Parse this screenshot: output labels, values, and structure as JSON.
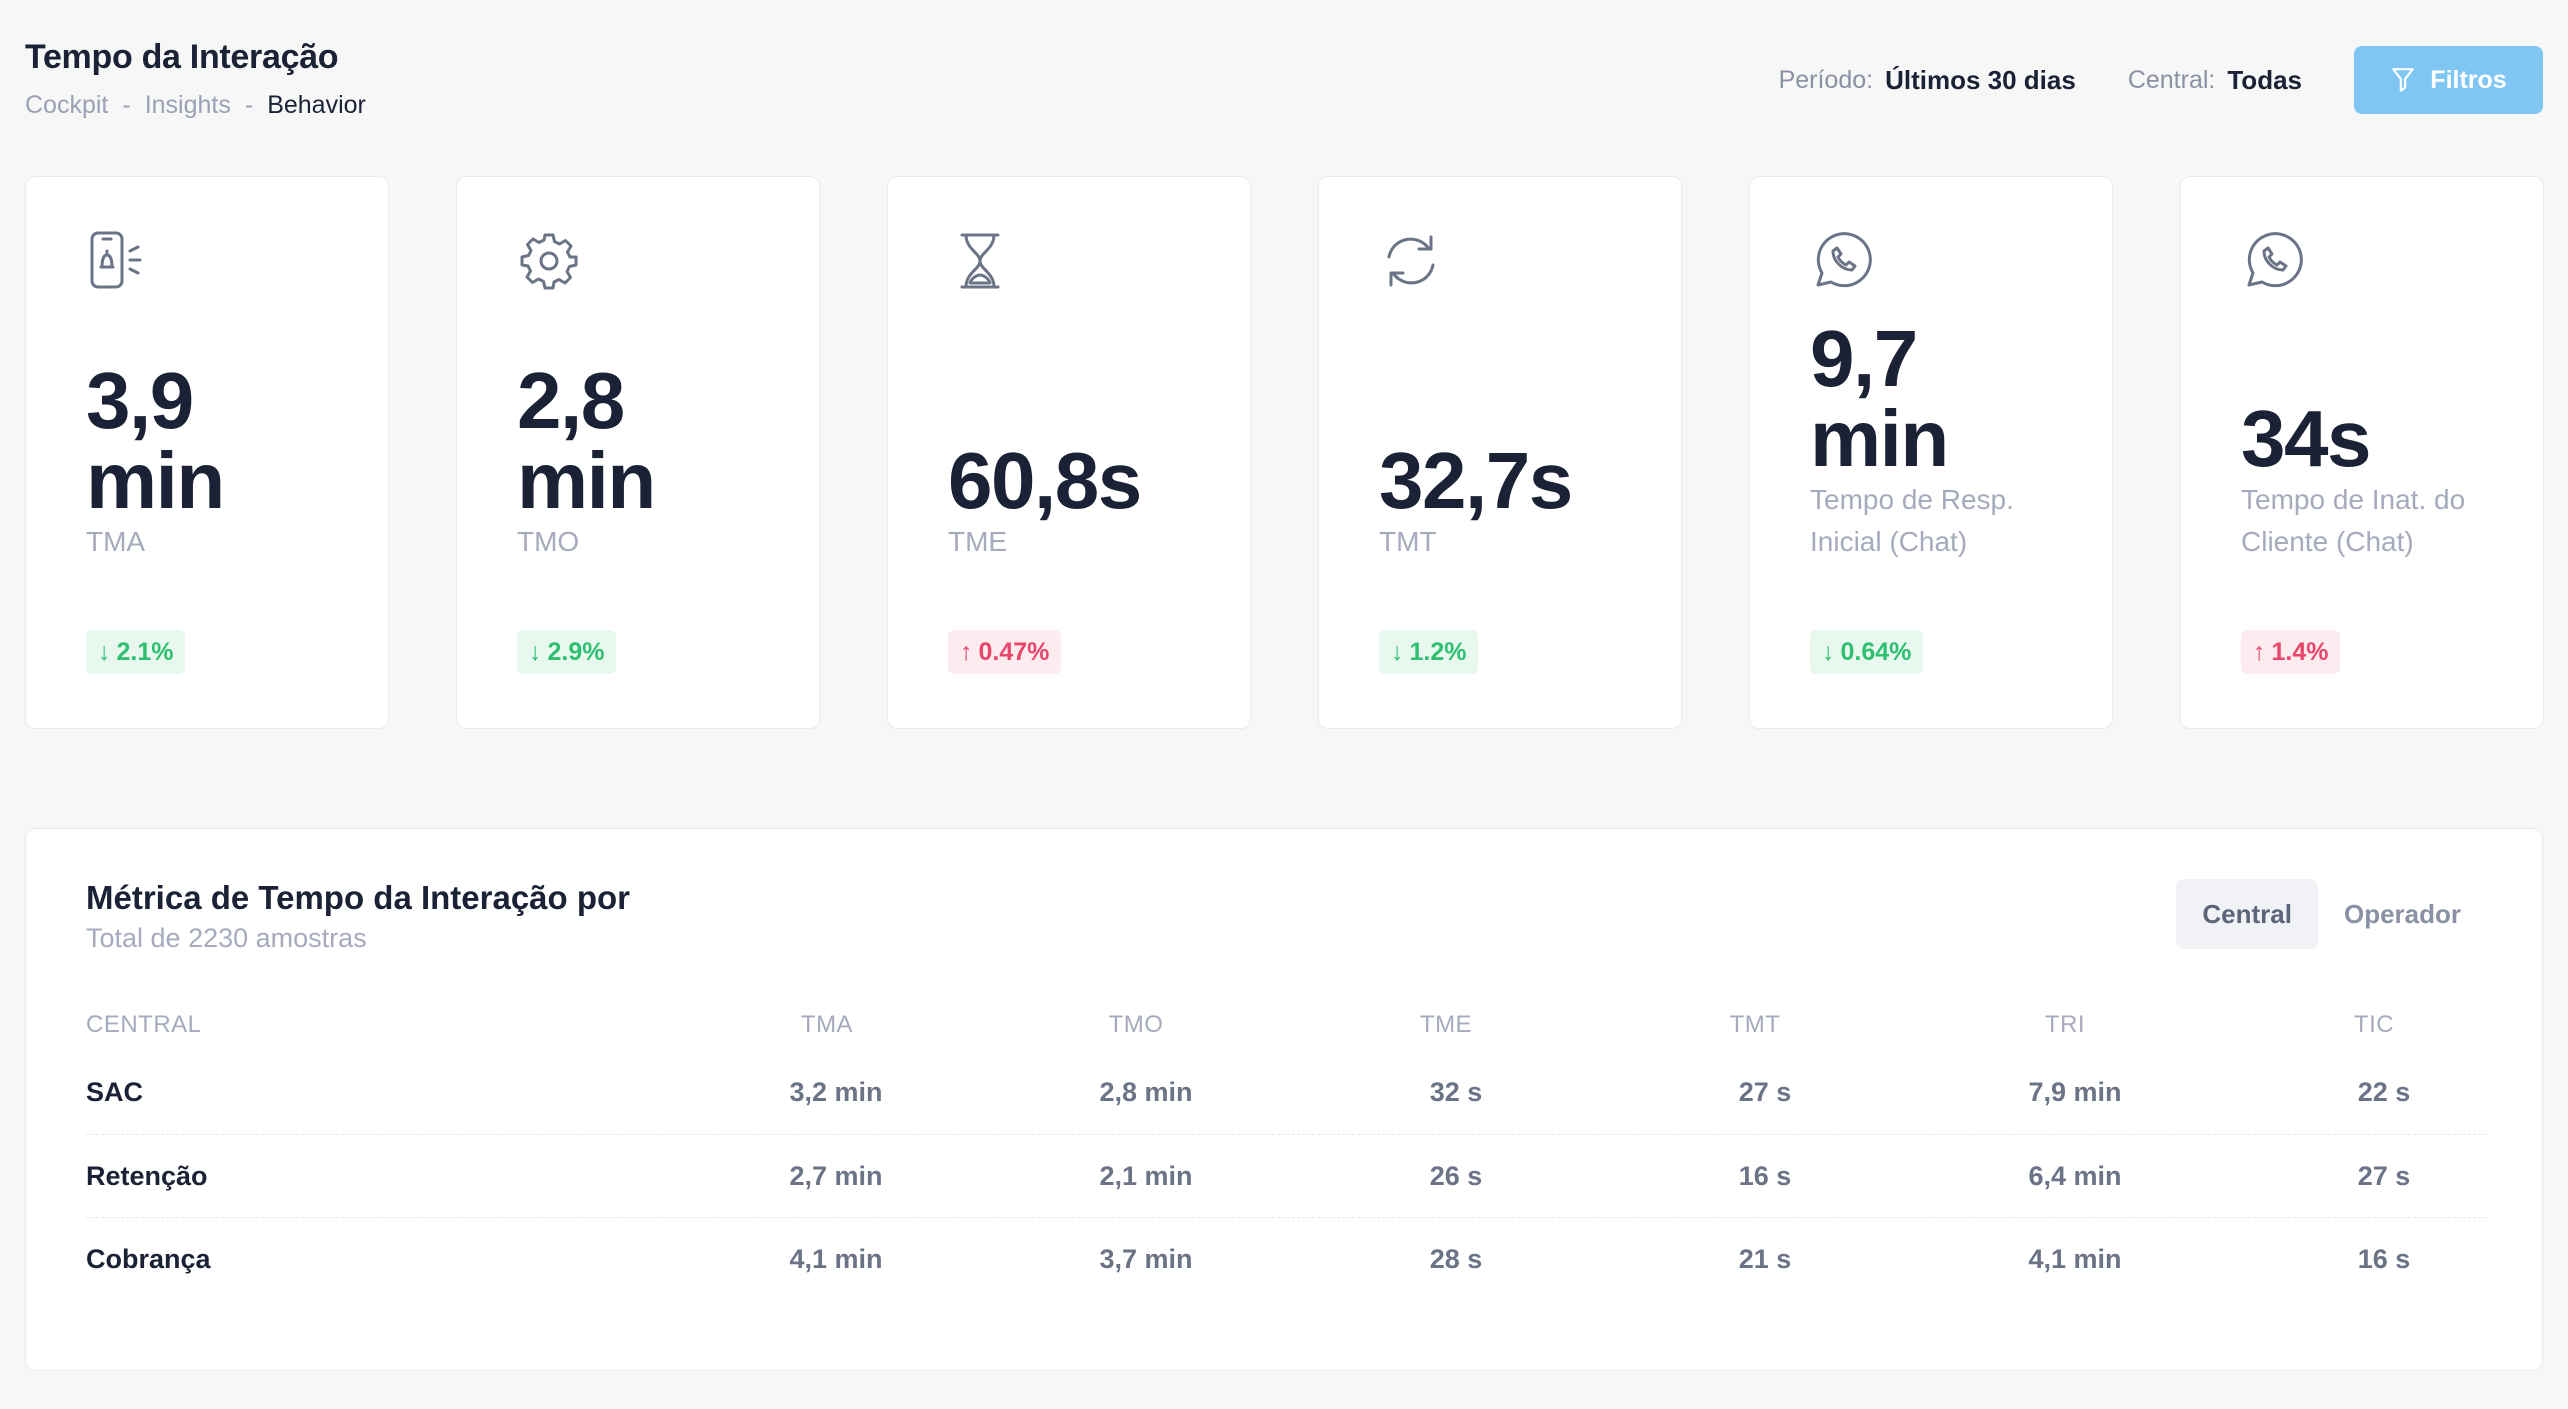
{
  "header": {
    "title": "Tempo da Interação",
    "breadcrumb": [
      "Cockpit",
      "Insights",
      "Behavior"
    ],
    "period_label": "Período:",
    "period_value": "Últimos 30 dias",
    "central_label": "Central:",
    "central_value": "Todas",
    "filter_label": "Filtros"
  },
  "cards": [
    {
      "icon": "phone-signal-icon",
      "value_line1": "3,9",
      "value_line2": "min",
      "label": "TMA",
      "delta": "2.1%",
      "direction": "down"
    },
    {
      "icon": "gear-icon",
      "value_line1": "2,8",
      "value_line2": "min",
      "label": "TMO",
      "delta": "2.9%",
      "direction": "down"
    },
    {
      "icon": "hourglass-icon",
      "value_line1": "60,8s",
      "value_line2": "",
      "label": "TME",
      "delta": "0.47%",
      "direction": "up"
    },
    {
      "icon": "refresh-icon",
      "value_line1": "32,7s",
      "value_line2": "",
      "label": "TMT",
      "delta": "1.2%",
      "direction": "down"
    },
    {
      "icon": "whatsapp-icon",
      "value_line1": "9,7",
      "value_line2": "min",
      "label": "Tempo de Resp. Inicial (Chat)",
      "delta": "0.64%",
      "direction": "down"
    },
    {
      "icon": "whatsapp-icon",
      "value_line1": "34s",
      "value_line2": "",
      "label": "Tempo de Inat. do Cliente (Chat)",
      "delta": "1.4%",
      "direction": "up"
    }
  ],
  "panel": {
    "title": "Métrica de Tempo da Interação por",
    "subtitle": "Total de 2230 amostras",
    "toggle": [
      "Central",
      "Operador"
    ],
    "columns": [
      "CENTRAL",
      "TMA",
      "TMO",
      "TME",
      "TMT",
      "TRI",
      "TIC"
    ],
    "rows": [
      [
        "SAC",
        "3,2 min",
        "2,8 min",
        "32 s",
        "27 s",
        "7,9 min",
        "22 s"
      ],
      [
        "Retenção",
        "2,7 min",
        "2,1 min",
        "26 s",
        "16 s",
        "6,4 min",
        "27 s"
      ],
      [
        "Cobrança",
        "4,1 min",
        "3,7 min",
        "28 s",
        "21 s",
        "4,1 min",
        "16 s"
      ]
    ]
  },
  "colors": {
    "accent": "#7fc6f3",
    "positive": "#2fbf71",
    "negative": "#e8466b",
    "text": "#1b2236",
    "muted": "#a5abbc"
  }
}
